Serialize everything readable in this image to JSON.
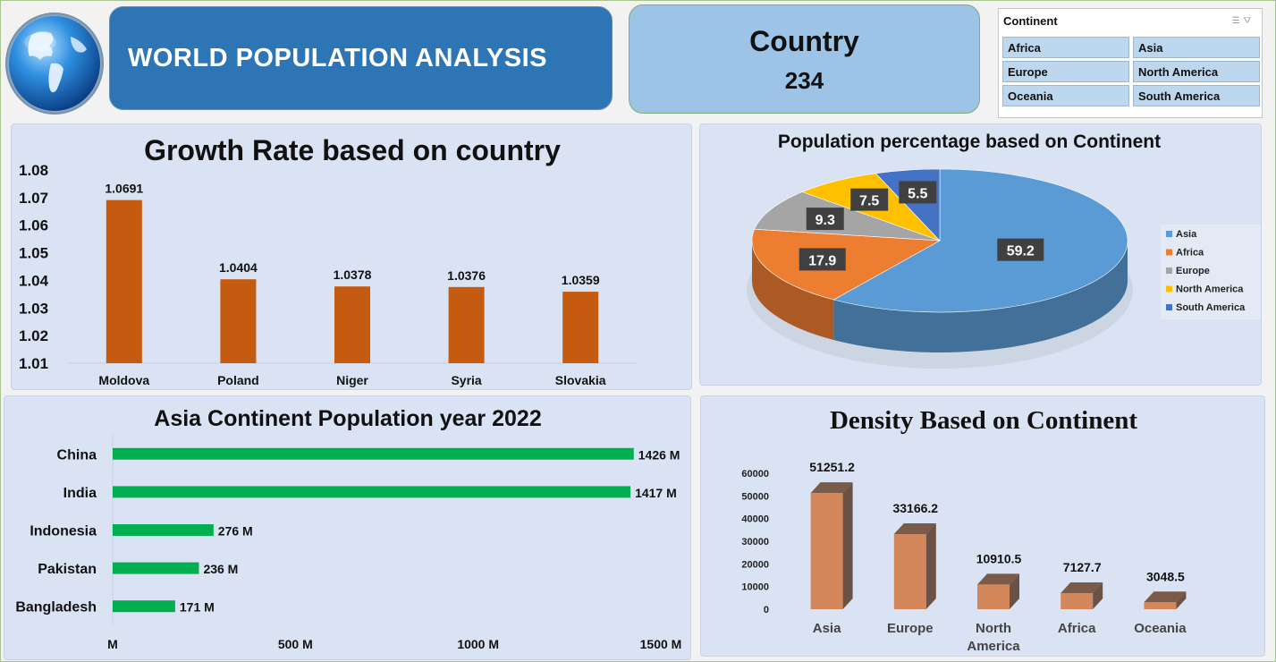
{
  "header": {
    "title": "WORLD POPULATION ANALYSIS",
    "kpi_label": "Country",
    "kpi_value": "234"
  },
  "slicer": {
    "title": "Continent",
    "items": [
      "Africa",
      "Asia",
      "Europe",
      "North America",
      "Oceania",
      "South America"
    ]
  },
  "colors": {
    "growth_bar": "#c55a11",
    "asia_bar": "#00b050",
    "density_bar": "#d4875a",
    "title_bg": "#2e75b6",
    "kpi_bg": "#9dc3e6",
    "panel_bg": "#dae3f3"
  },
  "icons": [
    "globe-icon",
    "multi-select-icon",
    "clear-filter-icon"
  ],
  "chart_data": [
    {
      "type": "bar",
      "title": "Growth Rate based on country",
      "categories": [
        "Moldova",
        "Poland",
        "Niger",
        "Syria",
        "Slovakia"
      ],
      "values": [
        1.0691,
        1.0404,
        1.0378,
        1.0376,
        1.0359
      ],
      "data_labels": [
        "1.0691",
        "1.0404",
        "1.0378",
        "1.0376",
        "1.0359"
      ],
      "y_ticks": [
        "1.01",
        "1.02",
        "1.03",
        "1.04",
        "1.05",
        "1.06",
        "1.07",
        "1.08"
      ],
      "ylim": [
        1.01,
        1.08
      ]
    },
    {
      "type": "pie",
      "title": "Population percentage based on Continent",
      "categories": [
        "Asia",
        "Africa",
        "Europe",
        "North America",
        "South America"
      ],
      "values": [
        59.2,
        17.9,
        9.3,
        7.5,
        5.5
      ],
      "colors": [
        "#5b9bd5",
        "#ed7d31",
        "#a5a5a5",
        "#ffc000",
        "#4472c4"
      ],
      "legend_position": "right"
    },
    {
      "type": "bar",
      "orientation": "horizontal",
      "title": "Asia Continent Population year 2022",
      "categories": [
        "China",
        "India",
        "Indonesia",
        "Pakistan",
        "Bangladesh"
      ],
      "values": [
        1426,
        1417,
        276,
        236,
        171
      ],
      "data_labels": [
        "1426 M",
        "1417 M",
        "276 M",
        "236 M",
        "171 M"
      ],
      "x_ticks": [
        "M",
        "500 M",
        "1000 M",
        "1500 M"
      ],
      "xlim": [
        0,
        1500
      ]
    },
    {
      "type": "bar",
      "title": "Density Based on Continent",
      "categories": [
        "Asia",
        "Europe",
        "North America",
        "Africa",
        "Oceania"
      ],
      "values": [
        51251.2,
        33166.2,
        10910.5,
        7127.7,
        3048.5
      ],
      "data_labels": [
        "51251.2",
        "33166.2",
        "10910.5",
        "7127.7",
        "3048.5"
      ],
      "y_ticks": [
        "0",
        "10000",
        "20000",
        "30000",
        "40000",
        "50000",
        "60000"
      ],
      "ylim": [
        0,
        60000
      ]
    }
  ]
}
